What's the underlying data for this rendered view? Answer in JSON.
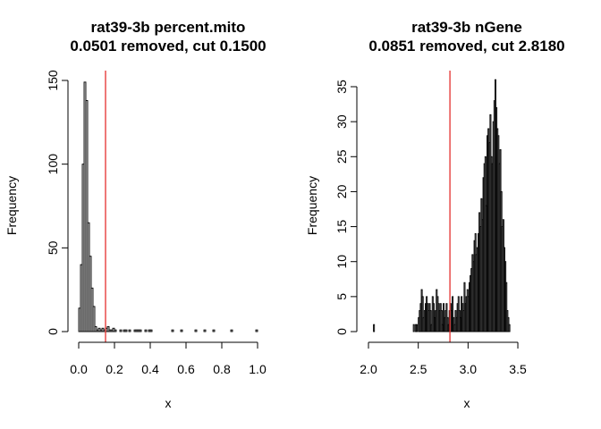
{
  "chart_data": [
    {
      "type": "bar",
      "title_line1": "rat39-3b percent.mito",
      "title_line2": "0.0501 removed, cut 0.1500",
      "xlabel": "x",
      "ylabel": "Frequency",
      "xlim": [
        0,
        1
      ],
      "ylim": [
        0,
        150
      ],
      "xticks": [
        "0.0",
        "0.2",
        "0.4",
        "0.6",
        "0.8",
        "1.0"
      ],
      "yticks": [
        "0",
        "50",
        "100",
        "150"
      ],
      "bin_start": 0.0,
      "bin_width": 0.01,
      "values": [
        14,
        40,
        100,
        149,
        138,
        65,
        45,
        26,
        15,
        3,
        1,
        2,
        1,
        2,
        1,
        2,
        3,
        1,
        1,
        2,
        1,
        0,
        0,
        1,
        0,
        1,
        1,
        0,
        1,
        0,
        0,
        1,
        1,
        1,
        1,
        0,
        0,
        1,
        0,
        1,
        1,
        0,
        0,
        0,
        0,
        0,
        0,
        0,
        0,
        0,
        0,
        0,
        1,
        0,
        0,
        0,
        0,
        1,
        0,
        0,
        0,
        0,
        0,
        0,
        0,
        1,
        0,
        0,
        0,
        0,
        1,
        0,
        0,
        0,
        0,
        1,
        0,
        0,
        0,
        0,
        0,
        0,
        0,
        0,
        0,
        1,
        0,
        0,
        0,
        0,
        0,
        0,
        0,
        0,
        0,
        0,
        0,
        0,
        0,
        1
      ],
      "cut": 0.15,
      "cut_color": "#e4302e",
      "grid": false
    },
    {
      "type": "bar",
      "title_line1": "rat39-3b nGene",
      "title_line2": "0.0851 removed, cut 2.8180",
      "xlabel": "x",
      "ylabel": "Frequency",
      "xlim": [
        2.0,
        3.85
      ],
      "ylim": [
        0,
        35
      ],
      "xticks": [
        "2.0",
        "2.5",
        "3.0",
        "3.5"
      ],
      "yticks": [
        "0",
        "5",
        "10",
        "15",
        "20",
        "25",
        "30",
        "35"
      ],
      "bin_start": 2.05,
      "bin_width": 0.01,
      "values": [
        1,
        0,
        0,
        0,
        0,
        0,
        0,
        0,
        0,
        0,
        0,
        0,
        0,
        0,
        0,
        0,
        0,
        0,
        0,
        0,
        0,
        0,
        0,
        0,
        0,
        0,
        0,
        0,
        0,
        0,
        0,
        0,
        0,
        0,
        0,
        0,
        0,
        0,
        0,
        0,
        1,
        0,
        1,
        1,
        0,
        2,
        3,
        4,
        6,
        5,
        2,
        3,
        4,
        5,
        4,
        3,
        4,
        3,
        1,
        5,
        4,
        2,
        3,
        6,
        5,
        4,
        3,
        4,
        3,
        1,
        4,
        2,
        3,
        4,
        2,
        1,
        3,
        4,
        3,
        5,
        2,
        1,
        3,
        2,
        4,
        5,
        3,
        2,
        5,
        4,
        3,
        7,
        4,
        5,
        6,
        5,
        7,
        8,
        9,
        11,
        10,
        13,
        14,
        11,
        12,
        14,
        17,
        15,
        19,
        16,
        22,
        24,
        25,
        18,
        28,
        29,
        27,
        31,
        25,
        24,
        30,
        33,
        36,
        32,
        29,
        28,
        24,
        26,
        20,
        15,
        16,
        12,
        10,
        7,
        3,
        2,
        1
      ],
      "cut": 2.818,
      "cut_color": "#e4302e",
      "grid": false
    }
  ]
}
